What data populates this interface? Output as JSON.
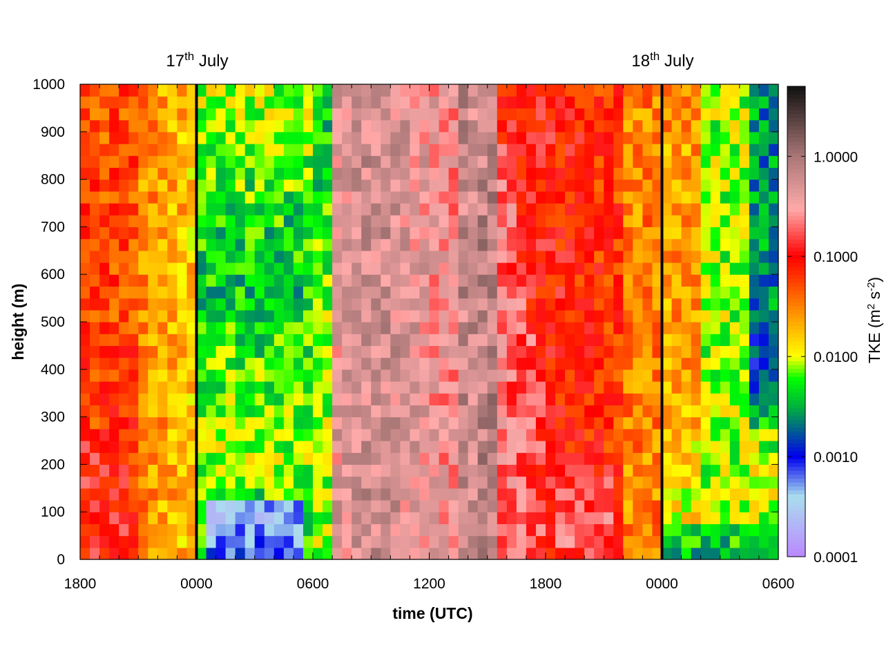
{
  "chart_data": {
    "type": "heatmap",
    "xlabel": "time (UTC)",
    "ylabel": "height (m)",
    "colorbar_label": "TKE (m² s⁻²)",
    "colorbar_label_parts": [
      "TKE (m",
      "2",
      " s",
      "-2",
      ")"
    ],
    "colorbar_scale": "log",
    "colorbar_range": [
      0.0001,
      5.0
    ],
    "colorbar_ticks": [
      "0.0001",
      "0.0010",
      "0.0100",
      "0.1000",
      "1.0000"
    ],
    "colormap_stops": [
      {
        "value": 0.0001,
        "color": "#bb88ff"
      },
      {
        "value": 0.0004,
        "color": "#aaddee"
      },
      {
        "value": 0.001,
        "color": "#0000ee"
      },
      {
        "value": 0.003,
        "color": "#00aa44"
      },
      {
        "value": 0.006,
        "color": "#00ff00"
      },
      {
        "value": 0.01,
        "color": "#ffff00"
      },
      {
        "value": 0.03,
        "color": "#ff8800"
      },
      {
        "value": 0.1,
        "color": "#ff0000"
      },
      {
        "value": 0.3,
        "color": "#ffaaaa"
      },
      {
        "value": 1.0,
        "color": "#aa7777"
      },
      {
        "value": 5.0,
        "color": "#111111"
      }
    ],
    "x_range_hours": [
      0,
      36
    ],
    "x_ticks": [
      "1800",
      "0000",
      "0600",
      "1200",
      "1800",
      "0000",
      "0600"
    ],
    "ylim": [
      0,
      1000
    ],
    "y_ticks": [
      "0",
      "100",
      "200",
      "300",
      "400",
      "500",
      "600",
      "700",
      "800",
      "900",
      "1000"
    ],
    "date_markers": [
      {
        "label": "17",
        "suffix": "th",
        "rest": " July",
        "time": "0000"
      },
      {
        "label": "18",
        "suffix": "th",
        "rest": " July",
        "time": "0000"
      }
    ],
    "grid_resolution": {
      "time_step_hours": 0.5,
      "height_step_m": 25
    }
  }
}
